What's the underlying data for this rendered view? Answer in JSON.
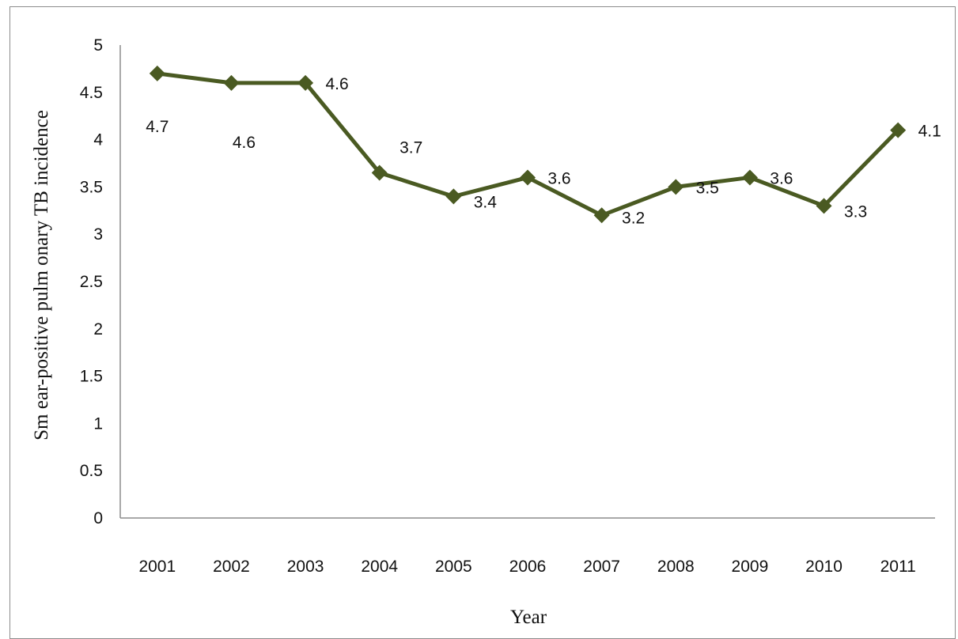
{
  "chart_data": {
    "type": "line",
    "xlabel": "Year",
    "ylabel": "Sm ear-positive pulm onary TB incidence",
    "ylim": [
      0,
      5
    ],
    "y_ticks": [
      "0",
      "0.5",
      "1",
      "1.5",
      "2",
      "2.5",
      "3",
      "3.5",
      "4",
      "4.5",
      "5"
    ],
    "y_tick_values": [
      0,
      0.5,
      1,
      1.5,
      2,
      2.5,
      3,
      3.5,
      4,
      4.5,
      5
    ],
    "categories": [
      "2001",
      "2002",
      "2003",
      "2004",
      "2005",
      "2006",
      "2007",
      "2008",
      "2009",
      "2010",
      "2011"
    ],
    "values": [
      4.7,
      4.6,
      4.6,
      3.65,
      3.4,
      3.6,
      3.2,
      3.5,
      3.6,
      3.3,
      4.1
    ],
    "data_labels": [
      "4.7",
      "4.6",
      "4.6",
      "3.7",
      "3.4",
      "3.6",
      "3.2",
      "3.5",
      "3.6",
      "3.3",
      "4.1"
    ],
    "line_color": "#4a5a22",
    "marker": "diamond",
    "grid": false,
    "legend": "none"
  }
}
